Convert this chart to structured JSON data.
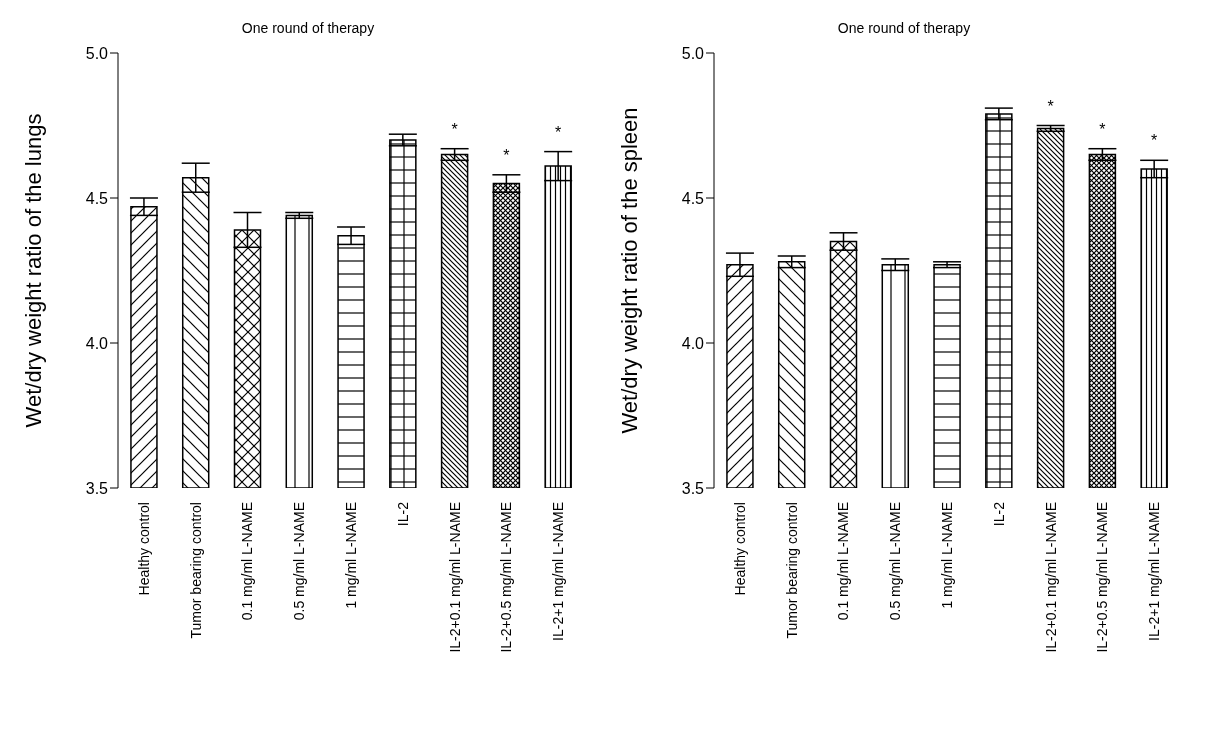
{
  "chart_data": [
    {
      "type": "bar",
      "title": "One round of therapy",
      "ylabel": "Wet/dry weight ratio of the lungs",
      "categories": [
        "Healthy control",
        "Tumor bearing control",
        "0.1 mg/ml L-NAME",
        "0.5 mg/ml L-NAME",
        "1 mg/ml L-NAME",
        "IL-2",
        "IL-2+0.1 mg/ml L-NAME",
        "IL-2+0.5 mg/ml L-NAME",
        "IL-2+1 mg/ml L-NAME"
      ],
      "values": [
        4.47,
        4.57,
        4.39,
        4.44,
        4.37,
        4.7,
        4.65,
        4.55,
        4.61
      ],
      "errors": [
        0.03,
        0.05,
        0.06,
        0.01,
        0.03,
        0.02,
        0.02,
        0.03,
        0.05
      ],
      "color": "#000000",
      "ylim": [
        3.5,
        5.0
      ],
      "yticks": [
        {
          "value": 3.5,
          "label": "3.5"
        },
        {
          "value": 4.0,
          "label": "4.0"
        },
        4.5,
        {
          "value": 5.0,
          "label": "5.0"
        }
      ],
      "annotations": [
        {
          "text": "*",
          "x": "IL-2+0.1 mg/ml L-NAME",
          "y": 4.65
        },
        {
          "text": "*",
          "x": "IL-2+0.5 mg/ml L-NAME",
          "y": 4.55
        },
        {
          "text": "*",
          "x": "IL-2+1 mg/ml L-NAME",
          "y": 4.61
        }
      ]
    },
    {
      "type": "bar",
      "title": "One round of therapy",
      "ylabel": "Wet/dry weight ratio of the spleen",
      "categories": [
        "Healthy control",
        "Tumor bearing control",
        "0.1 mg/ml L-NAME",
        "0.5 mg/ml L-NAME",
        "1 mg/ml L-NAME",
        "IL-2",
        "IL-2+0.1 mg/ml L-NAME",
        "IL-2+0.5 mg/ml L-NAME",
        "IL-2+1 mg/ml L-NAME"
      ],
      "values": [
        4.27,
        4.28,
        4.35,
        4.27,
        4.27,
        4.79,
        4.74,
        4.65,
        4.6
      ],
      "errors": [
        0.04,
        0.02,
        0.03,
        0.02,
        0.01,
        0.02,
        0.01,
        0.02,
        0.03
      ],
      "color": "#000000",
      "ylim": [
        3.5,
        5.0
      ],
      "yticks": [
        {
          "value": 3.5,
          "label": "3.5"
        },
        {
          "value": 4.0,
          "label": "4.0"
        },
        4.5,
        {
          "value": 5.0,
          "label": "5.0"
        }
      ],
      "annotations": [
        {
          "text": "*",
          "x": "IL-2+0.1 mg/ml L-NAME",
          "y": 4.74
        },
        {
          "text": "*",
          "x": "IL-2+0.5 mg/ml L-NAME",
          "y": 4.65
        },
        {
          "text": "*",
          "x": "IL-2+1 mg/ml L-NAME",
          "y": 4.6
        }
      ]
    }
  ]
}
